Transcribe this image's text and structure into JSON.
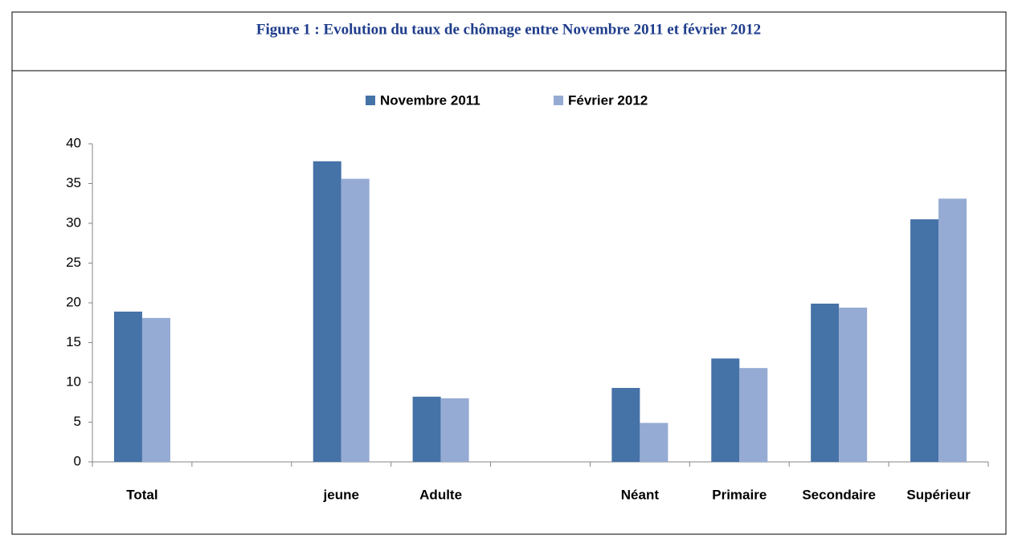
{
  "chart_data": {
    "type": "bar",
    "title": "Figure 1 : Evolution du taux de chômage entre Novembre 2011 et février 2012",
    "categories": [
      "Total",
      null,
      "jeune",
      "Adulte",
      null,
      "Néant",
      "Primaire",
      "Secondaire",
      "Supérieur"
    ],
    "series": [
      {
        "name": "Novembre 2011",
        "color": "#4572a7",
        "values": [
          18.9,
          null,
          37.8,
          8.2,
          null,
          9.3,
          13.0,
          19.9,
          30.5
        ]
      },
      {
        "name": "Février 2012",
        "color": "#95abd3",
        "values": [
          18.1,
          null,
          35.6,
          8.0,
          null,
          4.9,
          11.8,
          19.4,
          33.1
        ]
      }
    ],
    "ylim": [
      0,
      40
    ],
    "yticks": [
      0,
      5,
      10,
      15,
      20,
      25,
      30,
      35,
      40
    ],
    "grid": false,
    "legend": "top"
  }
}
